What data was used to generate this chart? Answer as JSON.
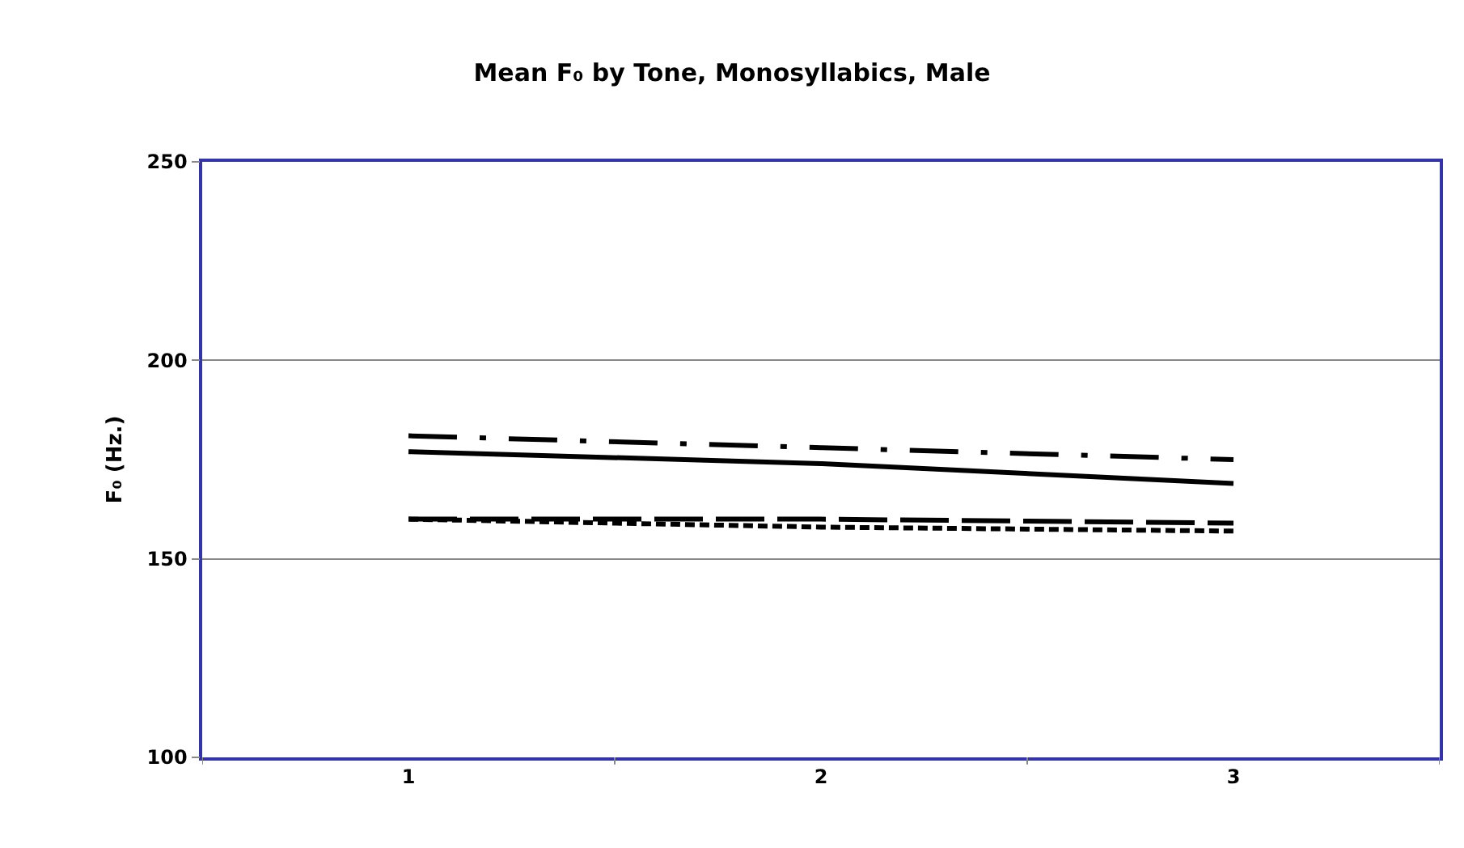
{
  "chart_data": {
    "type": "line",
    "title": "Mean F₀ by Tone, Monosyllabics, Male",
    "ylabel": "F₀ (Hz.)",
    "categories": [
      "1",
      "2",
      "3"
    ],
    "series": [
      {
        "color": "#000000",
        "line_style": "dashdot",
        "values": [
          181,
          178,
          175
        ]
      },
      {
        "color": "#000000",
        "line_style": "solid",
        "values": [
          177,
          174,
          169
        ]
      },
      {
        "color": "#000000",
        "line_style": "longdash",
        "values": [
          160,
          160,
          159
        ]
      },
      {
        "color": "#000000",
        "line_style": "dashed",
        "values": [
          160,
          158,
          157
        ]
      }
    ],
    "ylim": [
      100,
      250
    ],
    "yticks": [
      100,
      150,
      200,
      250
    ],
    "grid": "y",
    "marker": "none"
  }
}
